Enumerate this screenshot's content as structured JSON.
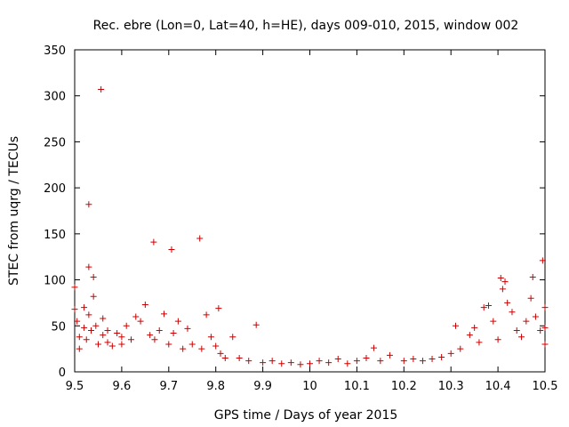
{
  "chart_data": {
    "type": "scatter",
    "title": "Rec. ebre (Lon=0, Lat=40, h=HE), days 009-010, 2015, window 002",
    "xlabel": "GPS time / Days of year 2015",
    "ylabel": "STEC from uqrg / TECUs",
    "xlim": [
      9.5,
      10.5
    ],
    "ylim": [
      0,
      350
    ],
    "x_ticks": [
      "9.5",
      "9.6",
      "9.7",
      "9.8",
      "9.9",
      "10",
      "10.1",
      "10.2",
      "10.3",
      "10.4",
      "10.5"
    ],
    "y_ticks": [
      "0",
      "50",
      "100",
      "150",
      "200",
      "250",
      "300",
      "350"
    ],
    "grid": false,
    "legend": "none",
    "marker": "plus",
    "color": "#cc0000",
    "series": [
      {
        "points": [
          [
            9.5,
            92
          ],
          [
            9.5,
            68
          ],
          [
            9.505,
            55
          ],
          [
            9.51,
            38
          ],
          [
            9.51,
            25
          ],
          [
            9.52,
            70
          ],
          [
            9.52,
            48
          ],
          [
            9.525,
            35
          ],
          [
            9.53,
            182
          ],
          [
            9.53,
            114
          ],
          [
            9.53,
            62
          ],
          [
            9.535,
            45
          ],
          [
            9.54,
            103
          ],
          [
            9.54,
            82
          ],
          [
            9.545,
            50
          ],
          [
            9.55,
            30
          ],
          [
            9.556,
            307
          ],
          [
            9.56,
            58
          ],
          [
            9.56,
            40
          ],
          [
            9.57,
            45
          ],
          [
            9.57,
            32
          ],
          [
            9.58,
            28
          ],
          [
            9.59,
            42
          ],
          [
            9.6,
            38
          ],
          [
            9.6,
            30
          ],
          [
            9.61,
            50
          ],
          [
            9.62,
            35
          ],
          [
            9.63,
            60
          ],
          [
            9.64,
            55
          ],
          [
            9.65,
            73
          ],
          [
            9.66,
            40
          ],
          [
            9.668,
            141
          ],
          [
            9.67,
            35
          ],
          [
            9.68,
            45
          ],
          [
            9.69,
            63
          ],
          [
            9.7,
            30
          ],
          [
            9.706,
            133
          ],
          [
            9.71,
            42
          ],
          [
            9.72,
            55
          ],
          [
            9.73,
            25
          ],
          [
            9.74,
            47
          ],
          [
            9.75,
            30
          ],
          [
            9.766,
            145
          ],
          [
            9.77,
            25
          ],
          [
            9.78,
            62
          ],
          [
            9.79,
            38
          ],
          [
            9.8,
            28
          ],
          [
            9.806,
            69
          ],
          [
            9.81,
            20
          ],
          [
            9.82,
            15
          ],
          [
            9.836,
            38
          ],
          [
            9.85,
            15
          ],
          [
            9.87,
            12
          ],
          [
            9.886,
            51
          ],
          [
            9.9,
            10
          ],
          [
            9.92,
            12
          ],
          [
            9.94,
            9
          ],
          [
            9.96,
            10
          ],
          [
            9.98,
            8
          ],
          [
            10.0,
            9
          ],
          [
            10.02,
            12
          ],
          [
            10.04,
            10
          ],
          [
            10.06,
            14
          ],
          [
            10.08,
            9
          ],
          [
            10.1,
            12
          ],
          [
            10.12,
            15
          ],
          [
            10.136,
            26
          ],
          [
            10.15,
            12
          ],
          [
            10.17,
            18
          ],
          [
            10.2,
            12
          ],
          [
            10.22,
            14
          ],
          [
            10.24,
            12
          ],
          [
            10.26,
            14
          ],
          [
            10.28,
            16
          ],
          [
            10.3,
            20
          ],
          [
            10.31,
            50
          ],
          [
            10.32,
            25
          ],
          [
            10.34,
            40
          ],
          [
            10.35,
            48
          ],
          [
            10.36,
            32
          ],
          [
            10.37,
            70
          ],
          [
            10.38,
            72
          ],
          [
            10.39,
            55
          ],
          [
            10.4,
            35
          ],
          [
            10.406,
            102
          ],
          [
            10.41,
            90
          ],
          [
            10.415,
            98
          ],
          [
            10.42,
            75
          ],
          [
            10.43,
            65
          ],
          [
            10.44,
            45
          ],
          [
            10.45,
            38
          ],
          [
            10.46,
            55
          ],
          [
            10.47,
            80
          ],
          [
            10.474,
            103
          ],
          [
            10.48,
            60
          ],
          [
            10.49,
            45
          ],
          [
            10.495,
            121
          ],
          [
            10.5,
            70
          ],
          [
            10.5,
            48
          ],
          [
            10.5,
            30
          ]
        ]
      }
    ]
  }
}
